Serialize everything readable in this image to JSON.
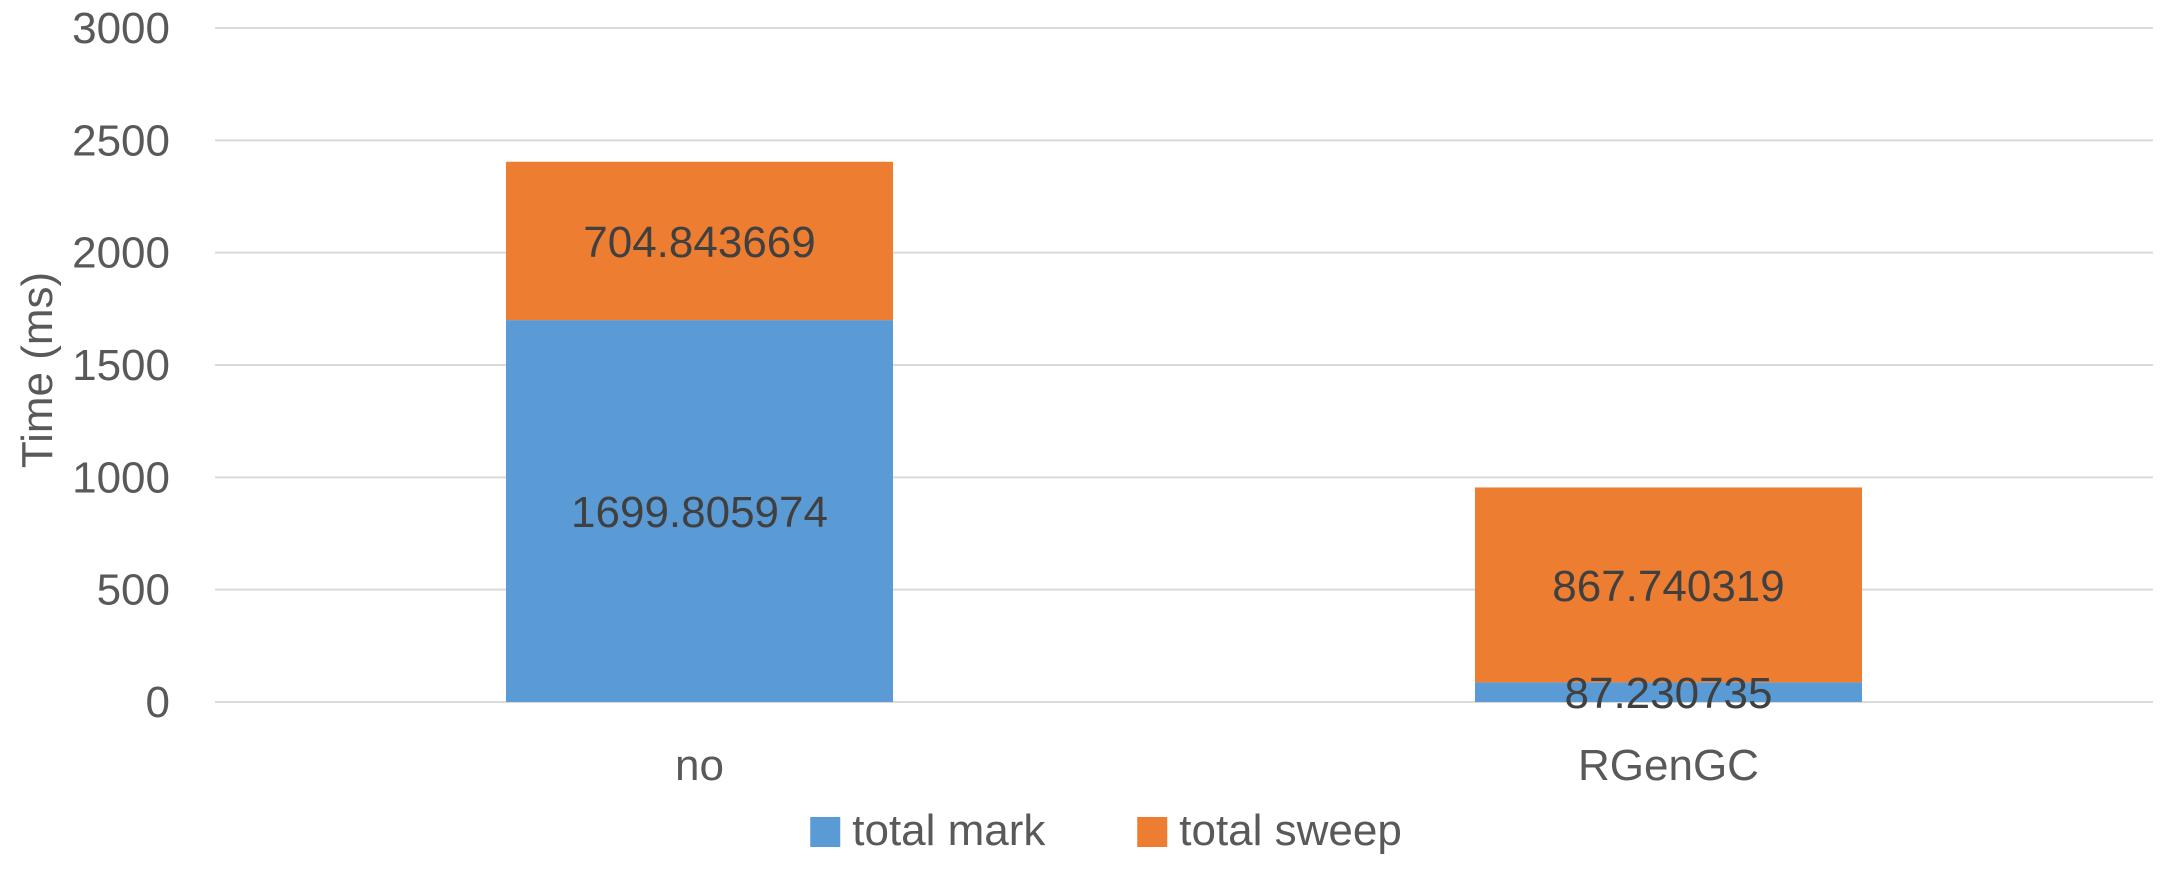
{
  "chart_data": {
    "type": "bar",
    "stacked": true,
    "categories": [
      "no",
      "RGenGC"
    ],
    "series": [
      {
        "name": "total mark",
        "values": [
          1699.805974,
          87.230735
        ],
        "labels": [
          "1699.805974",
          "87.230735"
        ],
        "color": "#5B9BD5"
      },
      {
        "name": "total sweep",
        "values": [
          704.843669,
          867.740319
        ],
        "labels": [
          "704.843669",
          "867.740319"
        ],
        "color": "#ED7D31"
      }
    ],
    "title": "",
    "xlabel": "",
    "ylabel": "Time (ms)",
    "ylim": [
      0,
      3000
    ],
    "yticks": [
      0,
      500,
      1000,
      1500,
      2000,
      2500,
      3000
    ],
    "ytick_labels": [
      "0",
      "500",
      "1000",
      "1500",
      "2000",
      "2500",
      "3000"
    ],
    "grid": true,
    "legend_position": "bottom"
  }
}
